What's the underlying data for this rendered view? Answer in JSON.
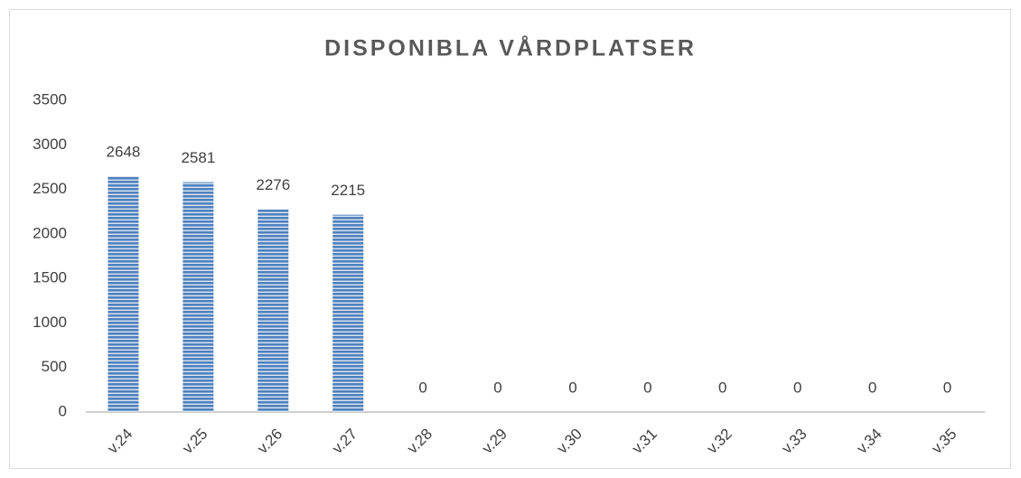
{
  "chart_data": {
    "type": "bar",
    "title": "DISPONIBLA VÅRDPLATSER",
    "categories": [
      "v.24",
      "v.25",
      "v.26",
      "v.27",
      "v.28",
      "v.29",
      "v.30",
      "v.31",
      "v.32",
      "v.33",
      "v.34",
      "v.35"
    ],
    "values": [
      2648,
      2581,
      2276,
      2215,
      0,
      0,
      0,
      0,
      0,
      0,
      0,
      0
    ],
    "color": "#4f81bd",
    "ylim": [
      0,
      3500
    ],
    "yticks": [
      0,
      500,
      1000,
      1500,
      2000,
      2500,
      3000,
      3500
    ],
    "grid": false
  }
}
